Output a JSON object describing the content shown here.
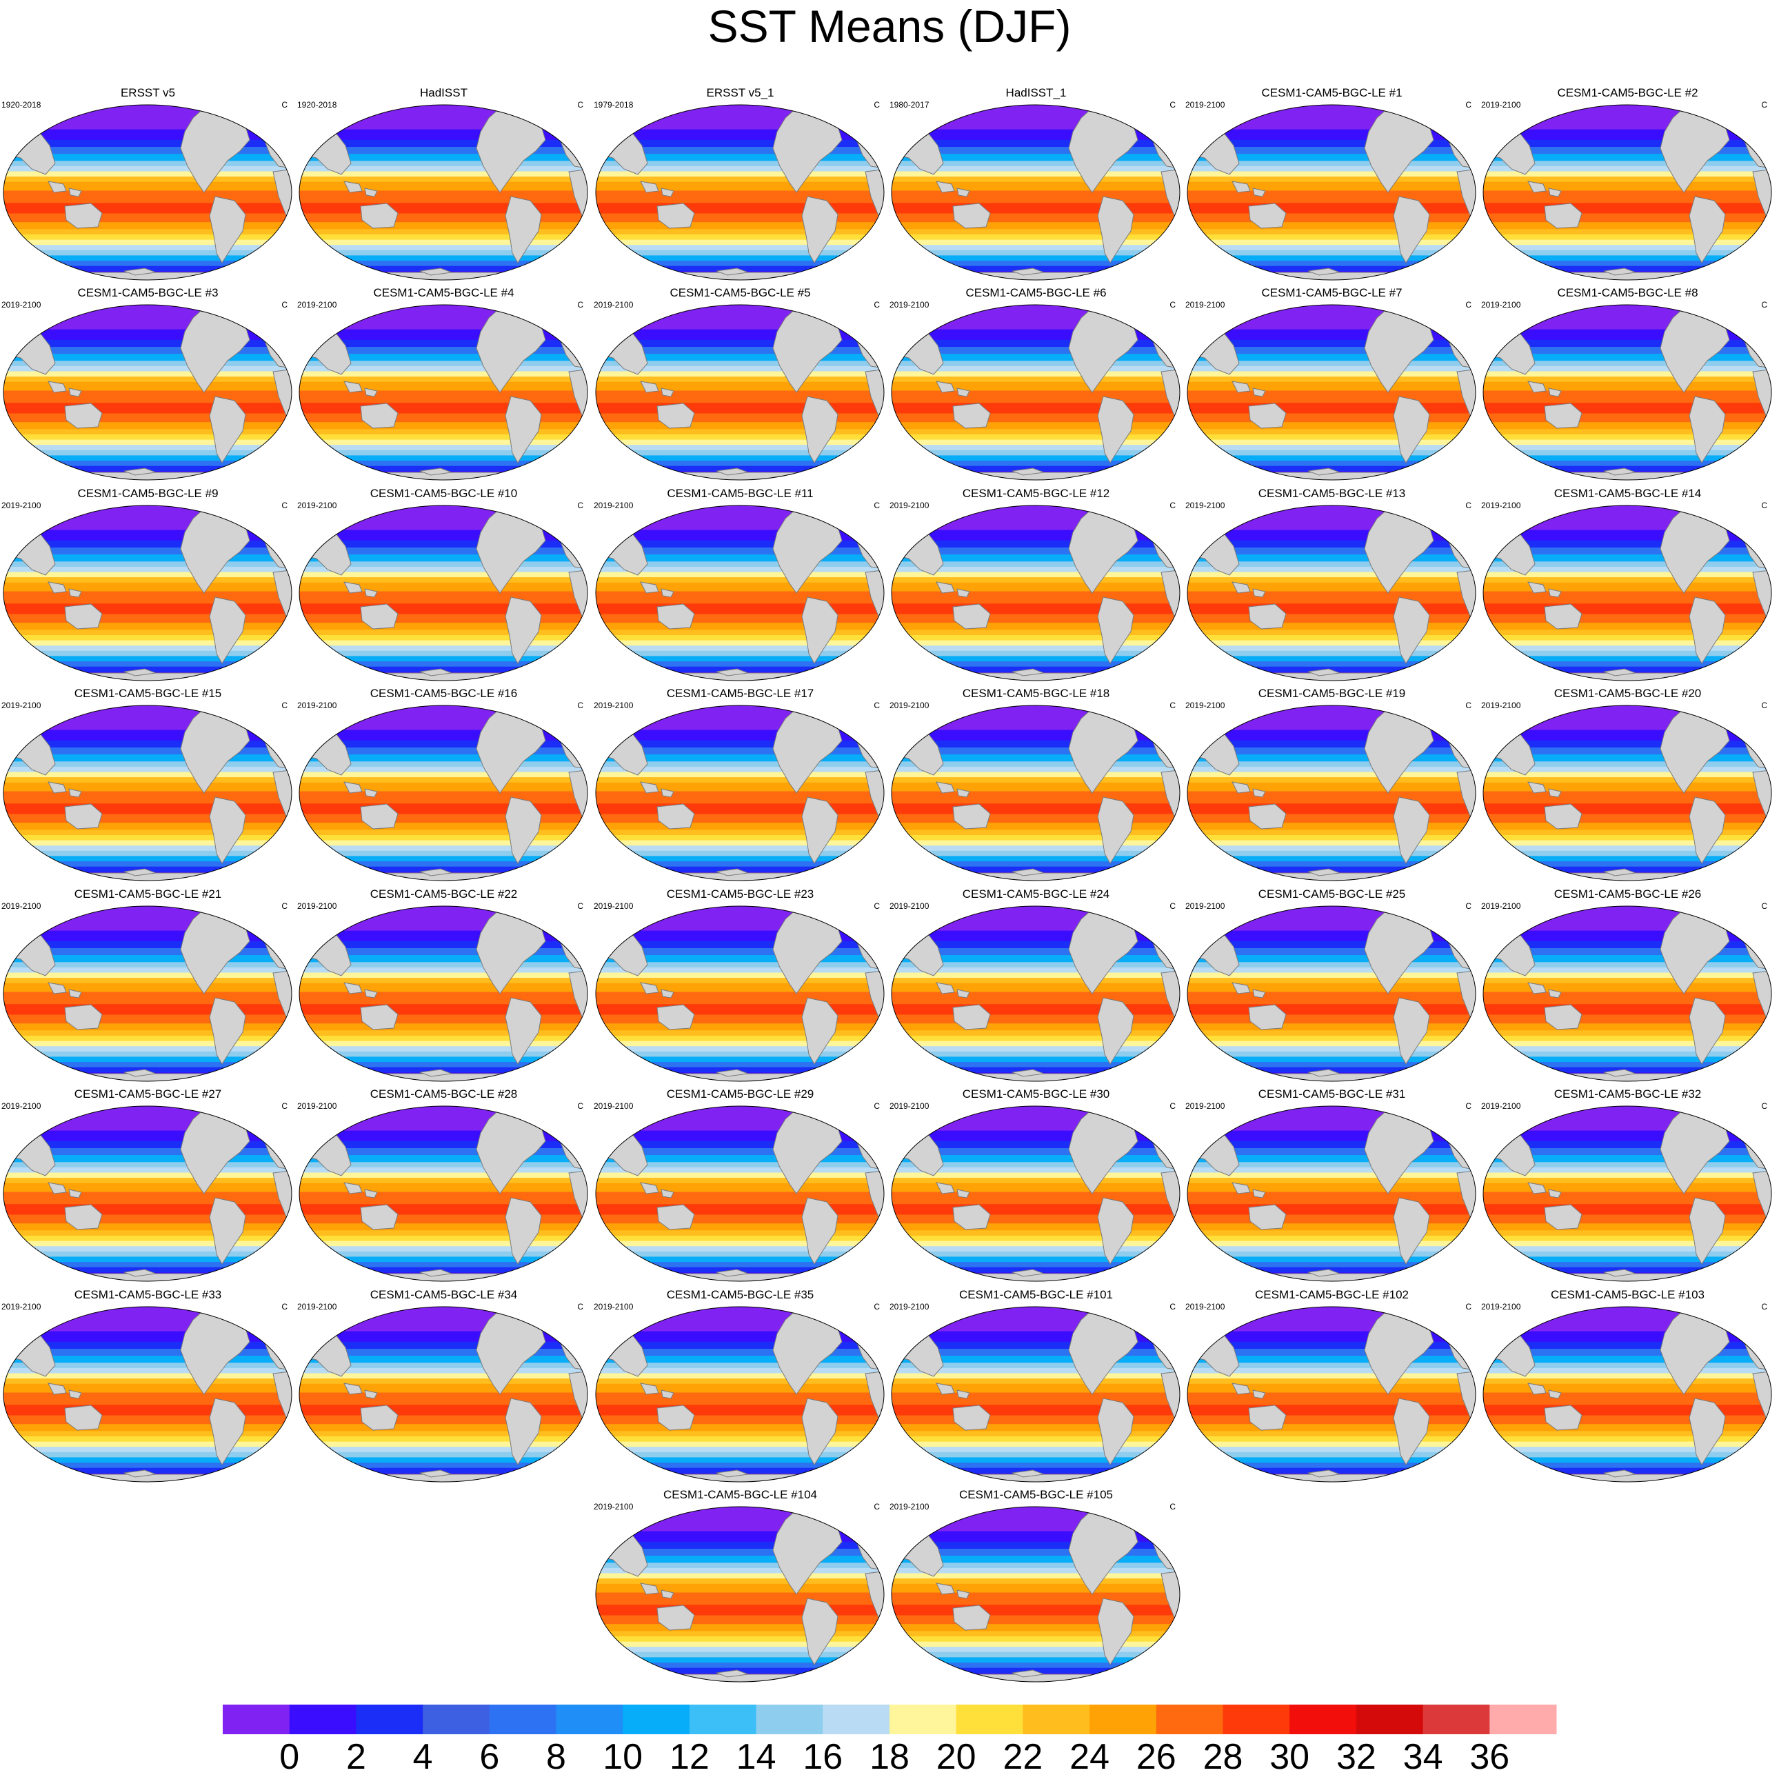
{
  "title": "SST Means (DJF)",
  "units": "C",
  "panels": [
    {
      "title": "ERSST v5",
      "period": "1920-2018"
    },
    {
      "title": "HadISST",
      "period": "1920-2018"
    },
    {
      "title": "ERSST v5_1",
      "period": "1979-2018"
    },
    {
      "title": "HadISST_1",
      "period": "1980-2017"
    },
    {
      "title": "CESM1-CAM5-BGC-LE #1",
      "period": "2019-2100"
    },
    {
      "title": "CESM1-CAM5-BGC-LE #2",
      "period": "2019-2100"
    },
    {
      "title": "CESM1-CAM5-BGC-LE #3",
      "period": "2019-2100"
    },
    {
      "title": "CESM1-CAM5-BGC-LE #4",
      "period": "2019-2100"
    },
    {
      "title": "CESM1-CAM5-BGC-LE #5",
      "period": "2019-2100"
    },
    {
      "title": "CESM1-CAM5-BGC-LE #6",
      "period": "2019-2100"
    },
    {
      "title": "CESM1-CAM5-BGC-LE #7",
      "period": "2019-2100"
    },
    {
      "title": "CESM1-CAM5-BGC-LE #8",
      "period": "2019-2100"
    },
    {
      "title": "CESM1-CAM5-BGC-LE #9",
      "period": "2019-2100"
    },
    {
      "title": "CESM1-CAM5-BGC-LE #10",
      "period": "2019-2100"
    },
    {
      "title": "CESM1-CAM5-BGC-LE #11",
      "period": "2019-2100"
    },
    {
      "title": "CESM1-CAM5-BGC-LE #12",
      "period": "2019-2100"
    },
    {
      "title": "CESM1-CAM5-BGC-LE #13",
      "period": "2019-2100"
    },
    {
      "title": "CESM1-CAM5-BGC-LE #14",
      "period": "2019-2100"
    },
    {
      "title": "CESM1-CAM5-BGC-LE #15",
      "period": "2019-2100"
    },
    {
      "title": "CESM1-CAM5-BGC-LE #16",
      "period": "2019-2100"
    },
    {
      "title": "CESM1-CAM5-BGC-LE #17",
      "period": "2019-2100"
    },
    {
      "title": "CESM1-CAM5-BGC-LE #18",
      "period": "2019-2100"
    },
    {
      "title": "CESM1-CAM5-BGC-LE #19",
      "period": "2019-2100"
    },
    {
      "title": "CESM1-CAM5-BGC-LE #20",
      "period": "2019-2100"
    },
    {
      "title": "CESM1-CAM5-BGC-LE #21",
      "period": "2019-2100"
    },
    {
      "title": "CESM1-CAM5-BGC-LE #22",
      "period": "2019-2100"
    },
    {
      "title": "CESM1-CAM5-BGC-LE #23",
      "period": "2019-2100"
    },
    {
      "title": "CESM1-CAM5-BGC-LE #24",
      "period": "2019-2100"
    },
    {
      "title": "CESM1-CAM5-BGC-LE #25",
      "period": "2019-2100"
    },
    {
      "title": "CESM1-CAM5-BGC-LE #26",
      "period": "2019-2100"
    },
    {
      "title": "CESM1-CAM5-BGC-LE #27",
      "period": "2019-2100"
    },
    {
      "title": "CESM1-CAM5-BGC-LE #28",
      "period": "2019-2100"
    },
    {
      "title": "CESM1-CAM5-BGC-LE #29",
      "period": "2019-2100"
    },
    {
      "title": "CESM1-CAM5-BGC-LE #30",
      "period": "2019-2100"
    },
    {
      "title": "CESM1-CAM5-BGC-LE #31",
      "period": "2019-2100"
    },
    {
      "title": "CESM1-CAM5-BGC-LE #32",
      "period": "2019-2100"
    },
    {
      "title": "CESM1-CAM5-BGC-LE #33",
      "period": "2019-2100"
    },
    {
      "title": "CESM1-CAM5-BGC-LE #34",
      "period": "2019-2100"
    },
    {
      "title": "CESM1-CAM5-BGC-LE #35",
      "period": "2019-2100"
    },
    {
      "title": "CESM1-CAM5-BGC-LE #101",
      "period": "2019-2100"
    },
    {
      "title": "CESM1-CAM5-BGC-LE #102",
      "period": "2019-2100"
    },
    {
      "title": "CESM1-CAM5-BGC-LE #103",
      "period": "2019-2100"
    },
    {
      "title": "CESM1-CAM5-BGC-LE #104",
      "period": "2019-2100"
    },
    {
      "title": "CESM1-CAM5-BGC-LE #105",
      "period": "2019-2100"
    }
  ],
  "colorbar": {
    "labels": [
      "0",
      "2",
      "4",
      "6",
      "8",
      "10",
      "12",
      "14",
      "16",
      "18",
      "20",
      "22",
      "24",
      "26",
      "28",
      "30",
      "32",
      "34",
      "36"
    ],
    "colors": [
      "#7f22f2",
      "#3a0dff",
      "#1a2ef8",
      "#3d5fe2",
      "#2d72f2",
      "#1f8ff7",
      "#07adf8",
      "#3cbff7",
      "#8fcdee",
      "#b9dcf4",
      "#fff59a",
      "#ffe03a",
      "#ffbd1e",
      "#ffa205",
      "#ff6a10",
      "#ff3a0a",
      "#f20e0a",
      "#d40a0a",
      "#dc3a3a",
      "#ffabab"
    ]
  },
  "land_color": "#d3d3d3",
  "outline_color": "#000000"
}
